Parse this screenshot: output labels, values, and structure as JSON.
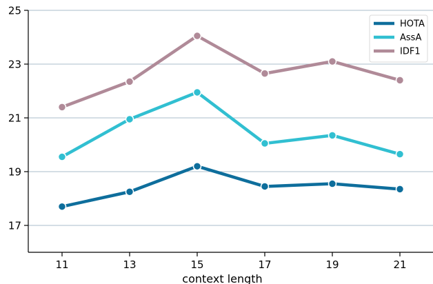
{
  "chart_data": {
    "type": "line",
    "title": "",
    "xlabel": "context length",
    "ylabel": "",
    "x": [
      11,
      13,
      15,
      17,
      19,
      21
    ],
    "xticks": [
      "11",
      "13",
      "15",
      "17",
      "19",
      "21"
    ],
    "yticks": [
      "17",
      "19",
      "21",
      "23",
      "25"
    ],
    "xlim": [
      10,
      22
    ],
    "ylim": [
      16,
      25
    ],
    "grid": "horizontal",
    "legend_position": "top-right",
    "series": [
      {
        "name": "HOTA",
        "color": "#0e6e9c",
        "values": [
          17.7,
          18.25,
          19.2,
          18.45,
          18.55,
          18.35
        ]
      },
      {
        "name": "AssA",
        "color": "#31bfd1",
        "values": [
          19.55,
          20.95,
          21.95,
          20.05,
          20.35,
          19.65
        ]
      },
      {
        "name": "IDF1",
        "color": "#b08a98",
        "values": [
          21.4,
          22.35,
          24.05,
          22.65,
          23.1,
          22.4
        ]
      }
    ]
  }
}
